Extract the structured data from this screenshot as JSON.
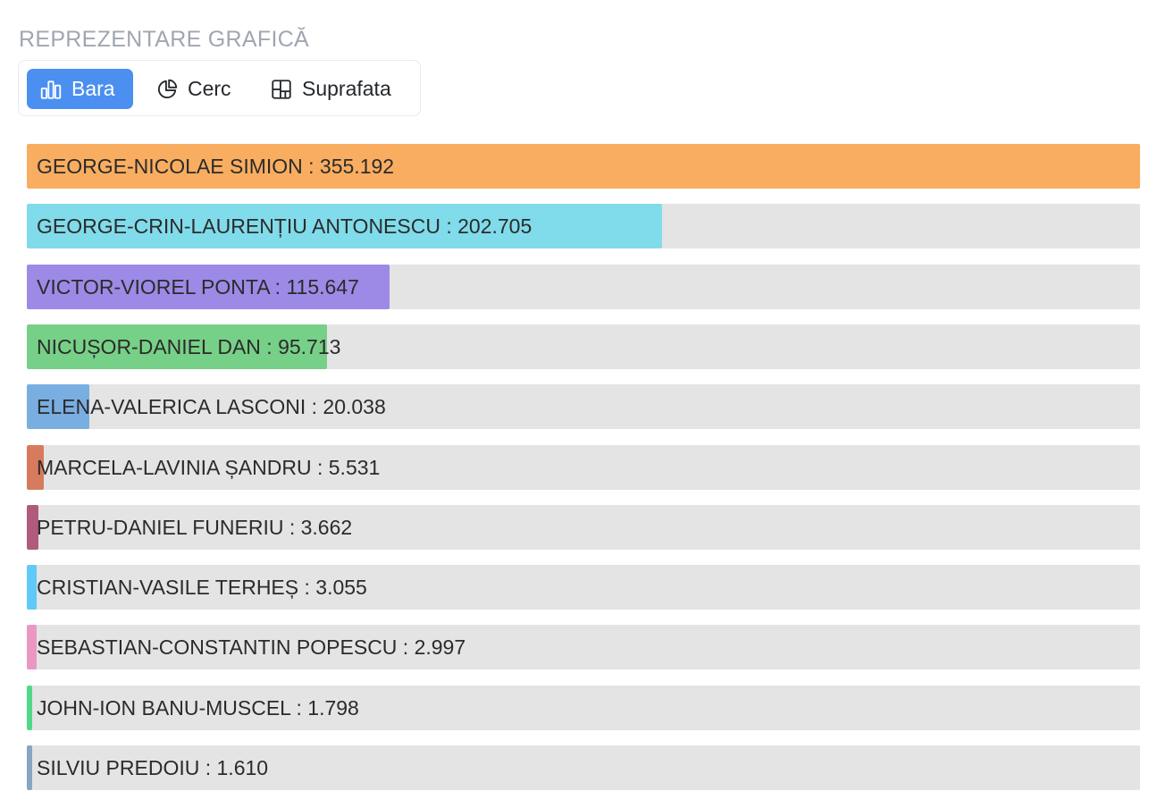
{
  "section_title": "REPREZENTARE GRAFICĂ",
  "view_toggle": {
    "options": [
      {
        "label": "Bara",
        "icon": "bar-chart-icon",
        "active": true
      },
      {
        "label": "Cerc",
        "icon": "pie-chart-icon",
        "active": false
      },
      {
        "label": "Suprafata",
        "icon": "treemap-icon",
        "active": false
      }
    ],
    "active_color": "#4b8ff0"
  },
  "chart_data": {
    "type": "bar",
    "orientation": "horizontal",
    "categories": [
      "GEORGE-NICOLAE SIMION",
      "GEORGE-CRIN-LAURENȚIU ANTONESCU",
      "VICTOR-VIOREL PONTA",
      "NICUȘOR-DANIEL DAN",
      "ELENA-VALERICA LASCONI",
      "MARCELA-LAVINIA ȘANDRU",
      "PETRU-DANIEL FUNERIU",
      "CRISTIAN-VASILE TERHEȘ",
      "SEBASTIAN-CONSTANTIN POPESCU",
      "JOHN-ION BANU-MUSCEL",
      "SILVIU PREDOIU"
    ],
    "values": [
      355192,
      202705,
      115647,
      95713,
      20038,
      5531,
      3662,
      3055,
      2997,
      1798,
      1610
    ],
    "value_labels": [
      "355.192",
      "202.705",
      "115.647",
      "95.713",
      "20.038",
      "5.531",
      "3.662",
      "3.055",
      "2.997",
      "1.798",
      "1.610"
    ],
    "colors": [
      "#f9ad60",
      "#80dbea",
      "#9d8ae6",
      "#77d087",
      "#79aee1",
      "#d67b5d",
      "#b05b7b",
      "#5fc9f8",
      "#eb97c4",
      "#4ed98a",
      "#87a5c4"
    ],
    "track_color": "#e4e4e4",
    "label_separator": " : ",
    "xlim": [
      0,
      355192
    ],
    "grid": false,
    "legend": "none"
  }
}
